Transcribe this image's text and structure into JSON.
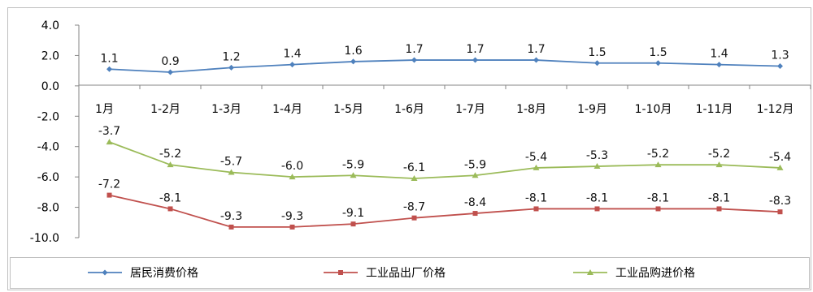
{
  "chart_data": {
    "type": "line",
    "categories": [
      "1月",
      "1-2月",
      "1-3月",
      "1-4月",
      "1-5月",
      "1-6月",
      "1-7月",
      "1-8月",
      "1-9月",
      "1-10月",
      "1-11月",
      "1-12月"
    ],
    "series": [
      {
        "name": "居民消费价格",
        "values": [
          1.1,
          0.9,
          1.2,
          1.4,
          1.6,
          1.7,
          1.7,
          1.7,
          1.5,
          1.5,
          1.4,
          1.3
        ],
        "color": "#4F81BD",
        "marker": "diamond"
      },
      {
        "name": "工业品出厂价格",
        "values": [
          -7.2,
          -8.1,
          -9.3,
          -9.3,
          -9.1,
          -8.7,
          -8.4,
          -8.1,
          -8.1,
          -8.1,
          -8.1,
          -8.3
        ],
        "color": "#C0504D",
        "marker": "square"
      },
      {
        "name": "工业品购进价格",
        "values": [
          -3.7,
          -5.2,
          -5.7,
          -6.0,
          -5.9,
          -6.1,
          -5.9,
          -5.4,
          -5.3,
          -5.2,
          -5.2,
          -5.4
        ],
        "color": "#9BBB59",
        "marker": "triangle"
      }
    ],
    "y_ticks": [
      "4.0",
      "2.0",
      "0.0",
      "-2.0",
      "-4.0",
      "-6.0",
      "-8.0",
      "-10.0"
    ],
    "ylim": [
      -10,
      4
    ],
    "grid": false,
    "legend_position": "bottom",
    "title": "",
    "xlabel": "",
    "ylabel": ""
  }
}
